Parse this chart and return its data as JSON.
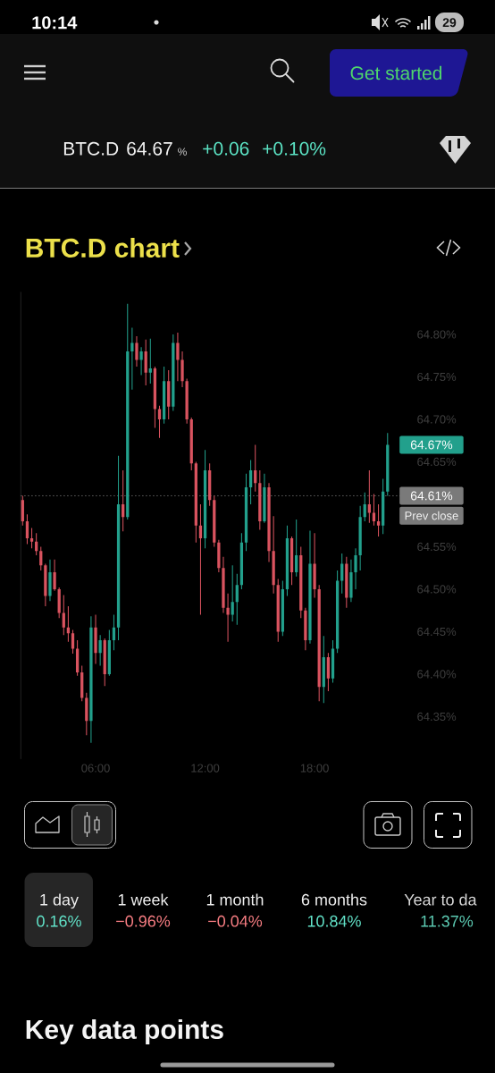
{
  "chart_data": {
    "type": "candlestick",
    "title": "BTC.D chart",
    "x": [
      2,
      2.25,
      2.5,
      2.75,
      3,
      3.25,
      3.5,
      3.75,
      4,
      4.25,
      4.5,
      4.75,
      5,
      5.25,
      5.5,
      5.75,
      6,
      6.25,
      6.5,
      6.75,
      7,
      7.25,
      7.5,
      7.75,
      8,
      8.25,
      8.5,
      8.75,
      9,
      9.25,
      9.5,
      9.75,
      10,
      10.25,
      10.5,
      10.75,
      11,
      11.25,
      11.5,
      11.75,
      12,
      12.25,
      12.5,
      12.75,
      13,
      13.25,
      13.5,
      13.75,
      14,
      14.25,
      14.5,
      14.75,
      15,
      15.25,
      15.5,
      15.75,
      16,
      16.25,
      16.5,
      16.75,
      17,
      17.25,
      17.5,
      17.75,
      18,
      18.25,
      18.5,
      18.75,
      19,
      19.25,
      19.5,
      19.75,
      20,
      20.25,
      20.5,
      20.75,
      21,
      21.25,
      21.5,
      21.75,
      22
    ],
    "ohlc": [
      [
        64.605,
        64.61,
        64.575,
        64.58
      ],
      [
        64.58,
        64.588,
        64.553,
        64.56
      ],
      [
        64.56,
        64.572,
        64.548,
        64.556
      ],
      [
        64.556,
        64.566,
        64.54,
        64.545
      ],
      [
        64.545,
        64.55,
        64.522,
        64.528
      ],
      [
        64.528,
        64.53,
        64.48,
        64.492
      ],
      [
        64.492,
        64.535,
        64.486,
        64.52
      ],
      [
        64.52,
        64.535,
        64.498,
        64.5
      ],
      [
        64.5,
        64.502,
        64.466,
        64.472
      ],
      [
        64.472,
        64.493,
        64.446,
        64.455
      ],
      [
        64.455,
        64.48,
        64.438,
        64.448
      ],
      [
        64.448,
        64.452,
        64.424,
        64.43
      ],
      [
        64.43,
        64.44,
        64.398,
        64.402
      ],
      [
        64.402,
        64.41,
        64.368,
        64.372
      ],
      [
        64.372,
        64.378,
        64.328,
        64.345
      ],
      [
        64.345,
        64.468,
        64.319,
        64.455
      ],
      [
        64.455,
        64.47,
        64.412,
        64.425
      ],
      [
        64.425,
        64.446,
        64.41,
        64.44
      ],
      [
        64.44,
        64.442,
        64.386,
        64.4
      ],
      [
        64.4,
        64.452,
        64.398,
        64.44
      ],
      [
        64.44,
        64.47,
        64.428,
        64.455
      ],
      [
        64.455,
        64.657,
        64.44,
        64.6
      ],
      [
        64.6,
        64.64,
        64.568,
        64.585
      ],
      [
        64.585,
        64.836,
        64.582,
        64.78
      ],
      [
        64.78,
        64.808,
        64.735,
        64.79
      ],
      [
        64.79,
        64.798,
        64.762,
        64.77
      ],
      [
        64.77,
        64.785,
        64.752,
        64.78
      ],
      [
        64.78,
        64.794,
        64.74,
        64.755
      ],
      [
        64.755,
        64.795,
        64.742,
        64.76
      ],
      [
        64.76,
        64.762,
        64.69,
        64.712
      ],
      [
        64.712,
        64.716,
        64.678,
        64.7
      ],
      [
        64.7,
        64.762,
        64.695,
        64.745
      ],
      [
        64.745,
        64.758,
        64.7,
        64.715
      ],
      [
        64.715,
        64.8,
        64.71,
        64.79
      ],
      [
        64.79,
        64.802,
        64.745,
        64.77
      ],
      [
        64.77,
        64.78,
        64.738,
        64.745
      ],
      [
        64.745,
        64.748,
        64.695,
        64.7
      ],
      [
        64.7,
        64.702,
        64.64,
        64.648
      ],
      [
        64.648,
        64.65,
        64.555,
        64.575
      ],
      [
        64.575,
        64.6,
        64.47,
        64.56
      ],
      [
        64.56,
        64.664,
        64.548,
        64.64
      ],
      [
        64.64,
        64.648,
        64.598,
        64.605
      ],
      [
        64.605,
        64.61,
        64.55,
        64.555
      ],
      [
        64.555,
        64.558,
        64.52,
        64.525
      ],
      [
        64.525,
        64.538,
        64.472,
        64.478
      ],
      [
        64.478,
        64.495,
        64.438,
        64.47
      ],
      [
        64.47,
        64.528,
        64.462,
        64.485
      ],
      [
        64.485,
        64.518,
        64.458,
        64.505
      ],
      [
        64.505,
        64.566,
        64.5,
        64.555
      ],
      [
        64.555,
        64.636,
        64.545,
        64.62
      ],
      [
        64.62,
        64.652,
        64.6,
        64.64
      ],
      [
        64.64,
        64.67,
        64.615,
        64.625
      ],
      [
        64.625,
        64.64,
        64.57,
        64.58
      ],
      [
        64.58,
        64.636,
        64.578,
        64.62
      ],
      [
        64.62,
        64.625,
        64.532,
        64.545
      ],
      [
        64.545,
        64.586,
        64.495,
        64.505
      ],
      [
        64.505,
        64.512,
        64.438,
        64.45
      ],
      [
        64.45,
        64.51,
        64.445,
        64.5
      ],
      [
        64.5,
        64.575,
        64.492,
        64.56
      ],
      [
        64.56,
        64.562,
        64.505,
        64.52
      ],
      [
        64.52,
        64.582,
        64.515,
        64.54
      ],
      [
        64.54,
        64.55,
        64.466,
        64.475
      ],
      [
        64.475,
        64.478,
        64.428,
        64.44
      ],
      [
        64.44,
        64.569,
        64.436,
        64.53
      ],
      [
        64.53,
        64.566,
        64.49,
        64.5
      ],
      [
        64.5,
        64.505,
        64.368,
        64.385
      ],
      [
        64.385,
        64.445,
        64.366,
        64.42
      ],
      [
        64.42,
        64.425,
        64.38,
        64.395
      ],
      [
        64.395,
        64.44,
        64.39,
        64.43
      ],
      [
        64.43,
        64.522,
        64.425,
        64.51
      ],
      [
        64.51,
        64.542,
        64.495,
        64.53
      ],
      [
        64.53,
        64.538,
        64.478,
        64.49
      ],
      [
        64.49,
        64.535,
        64.485,
        64.52
      ],
      [
        64.52,
        64.548,
        64.5,
        64.54
      ],
      [
        64.54,
        64.598,
        64.522,
        64.585
      ],
      [
        64.585,
        64.614,
        64.58,
        64.6
      ],
      [
        64.6,
        64.64,
        64.578,
        64.59
      ],
      [
        64.59,
        64.612,
        64.575,
        64.58
      ],
      [
        64.58,
        64.6,
        64.562,
        64.575
      ],
      [
        64.575,
        64.63,
        64.565,
        64.615
      ],
      [
        64.615,
        64.684,
        64.61,
        64.67
      ]
    ],
    "colors": [
      "#d9535f",
      "#d9535f",
      "#d9535f",
      "#d9535f",
      "#d9535f",
      "#d9535f",
      "#22a08c",
      "#d9535f",
      "#d9535f",
      "#d9535f",
      "#d9535f",
      "#d9535f",
      "#d9535f",
      "#d9535f",
      "#d9535f",
      "#22a08c",
      "#d9535f",
      "#22a08c",
      "#d9535f",
      "#22a08c",
      "#22a08c",
      "#22a08c",
      "#d9535f",
      "#22a08c",
      "#22a08c",
      "#d9535f",
      "#22a08c",
      "#d9535f",
      "#22a08c",
      "#d9535f",
      "#d9535f",
      "#22a08c",
      "#d9535f",
      "#22a08c",
      "#d9535f",
      "#d9535f",
      "#d9535f",
      "#d9535f",
      "#d9535f",
      "#d9535f",
      "#22a08c",
      "#d9535f",
      "#d9535f",
      "#d9535f",
      "#d9535f",
      "#d9535f",
      "#22a08c",
      "#22a08c",
      "#22a08c",
      "#22a08c",
      "#22a08c",
      "#d9535f",
      "#d9535f",
      "#22a08c",
      "#d9535f",
      "#d9535f",
      "#d9535f",
      "#22a08c",
      "#22a08c",
      "#d9535f",
      "#22a08c",
      "#d9535f",
      "#d9535f",
      "#22a08c",
      "#d9535f",
      "#d9535f",
      "#22a08c",
      "#d9535f",
      "#22a08c",
      "#22a08c",
      "#22a08c",
      "#d9535f",
      "#22a08c",
      "#22a08c",
      "#22a08c",
      "#22a08c",
      "#d9535f",
      "#d9535f",
      "#d9535f",
      "#22a08c",
      "#22a08c"
    ],
    "xlim": [
      1.9,
      23.0
    ],
    "xticks": [
      {
        "value": 6,
        "label": "06:00"
      },
      {
        "value": 12,
        "label": "12:00"
      },
      {
        "value": 18,
        "label": "18:00"
      }
    ],
    "ylim": [
      64.3,
      64.85
    ],
    "yticks": [
      {
        "value": 64.35,
        "label": "64.35%"
      },
      {
        "value": 64.4,
        "label": "64.40%"
      },
      {
        "value": 64.45,
        "label": "64.45%"
      },
      {
        "value": 64.5,
        "label": "64.50%"
      },
      {
        "value": 64.55,
        "label": "64.55%"
      },
      {
        "value": 64.65,
        "label": "64.65%"
      },
      {
        "value": 64.7,
        "label": "64.70%"
      },
      {
        "value": 64.75,
        "label": "64.75%"
      },
      {
        "value": 64.8,
        "label": "64.80%"
      }
    ],
    "ref_lines": [
      {
        "axis": "y",
        "value": 64.61,
        "label": "Prev close",
        "color": "#7a7a7a",
        "line_style": "dotted"
      }
    ],
    "annotations": [
      "10:14",
      "29",
      "Get started",
      "BTC.D",
      "64.67",
      "%",
      "+0.06",
      "+0.10%",
      "64.67%",
      "64.61%",
      "1 day",
      "0.16%",
      "1 week",
      "−0.96%",
      "1 month",
      "−0.04%",
      "6 months",
      "10.84%",
      "Year to da",
      "11.37%",
      "Key data points"
    ]
  }
}
